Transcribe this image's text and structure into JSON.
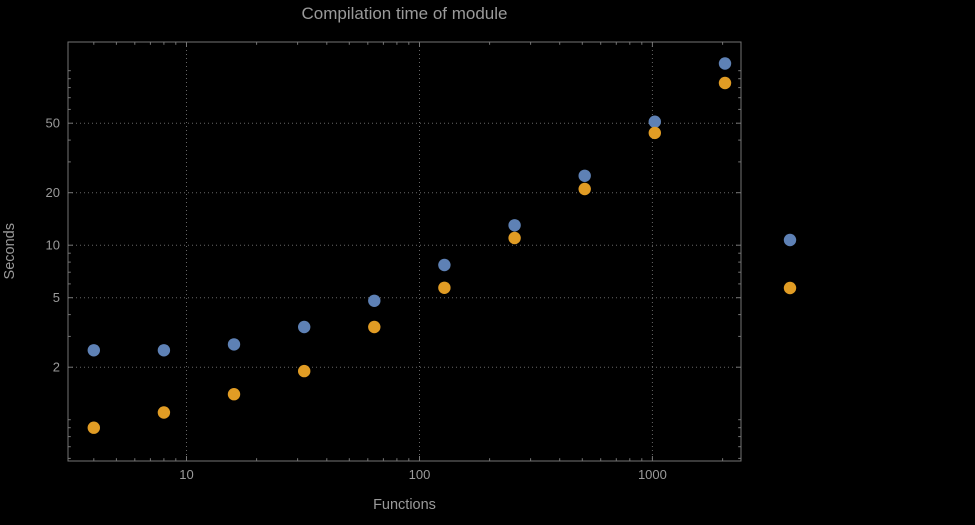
{
  "colors": {
    "background": "#000000",
    "text": "#9a9a9a",
    "grid": "#676767",
    "frame": "#757575",
    "series1": "#5e81b5",
    "series2": "#e19c24"
  },
  "chart_data": {
    "type": "scatter",
    "title": "Compilation time of module",
    "xlabel": "Functions",
    "ylabel": "Seconds",
    "xscale": "log",
    "yscale": "log",
    "xlim": [
      3.1,
      2400
    ],
    "ylim": [
      0.58,
      146
    ],
    "xticks": [
      10,
      100,
      1000
    ],
    "yticks": [
      2,
      5,
      10,
      20,
      50
    ],
    "grid": true,
    "x": [
      4,
      8,
      16,
      32,
      64,
      128,
      256,
      512,
      1024,
      2048
    ],
    "series": [
      {
        "name": "series-1",
        "color": "#5e81b5",
        "values": [
          2.5,
          2.5,
          2.7,
          3.4,
          4.8,
          7.7,
          13,
          25,
          51,
          110
        ]
      },
      {
        "name": "series-2",
        "color": "#e19c24",
        "values": [
          0.9,
          1.1,
          1.4,
          1.9,
          3.4,
          5.7,
          11,
          21,
          44,
          85
        ]
      }
    ],
    "legend": {
      "position": "right-outside",
      "markers": [
        "#5e81b5",
        "#e19c24"
      ]
    }
  }
}
